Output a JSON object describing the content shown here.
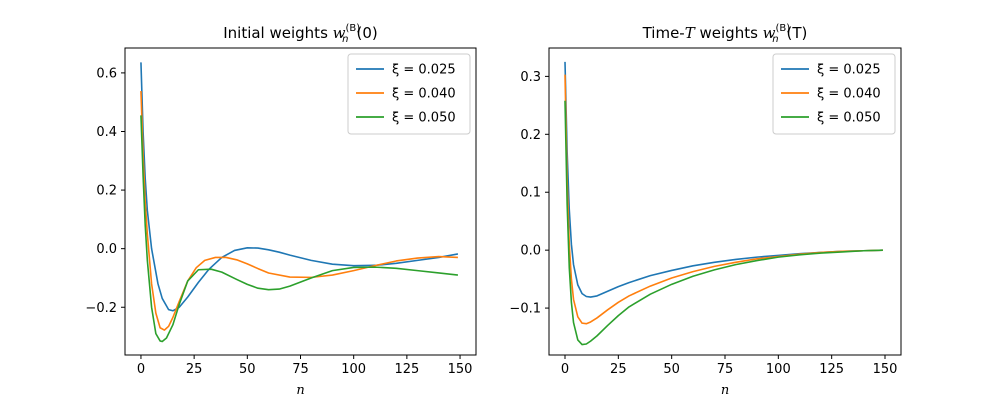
{
  "chart_data": [
    {
      "type": "line",
      "title": "Initial weights w_n^(B)(0)",
      "title_parts": {
        "prefix": "Initial weights ",
        "var": "w",
        "sub": "n",
        "sup": "(B)",
        "suffix": "(0)"
      },
      "xlabel": "n",
      "ylabel": "",
      "xlim": [
        -7.5,
        157.5
      ],
      "ylim": [
        -0.363,
        0.685
      ],
      "xticks": [
        0,
        25,
        50,
        75,
        100,
        125,
        150
      ],
      "xtick_labels": [
        "0",
        "25",
        "50",
        "75",
        "100",
        "125",
        "150"
      ],
      "yticks": [
        -0.2,
        0.0,
        0.2,
        0.4,
        0.6
      ],
      "ytick_labels": [
        "−0.2",
        "0.0",
        "0.2",
        "0.4",
        "0.6"
      ],
      "legend_position": "upper-right",
      "series": [
        {
          "name": "ξ = 0.025",
          "color": "#1f77b4",
          "x": [
            0,
            1,
            2,
            3,
            5,
            8,
            10,
            13,
            15,
            18,
            22,
            27,
            32,
            38,
            44,
            50,
            55,
            60,
            65,
            70,
            80,
            90,
            100,
            110,
            120,
            130,
            140,
            149
          ],
          "y": [
            0.636,
            0.4,
            0.24,
            0.13,
            0.0,
            -0.12,
            -0.17,
            -0.208,
            -0.212,
            -0.2,
            -0.165,
            -0.115,
            -0.07,
            -0.03,
            -0.006,
            0.003,
            0.002,
            -0.004,
            -0.012,
            -0.022,
            -0.04,
            -0.053,
            -0.058,
            -0.057,
            -0.05,
            -0.04,
            -0.03,
            -0.018
          ]
        },
        {
          "name": "ξ = 0.040",
          "color": "#ff7f0e",
          "x": [
            0,
            1,
            2,
            3,
            5,
            7,
            9,
            11,
            13,
            15,
            18,
            22,
            26,
            30,
            35,
            40,
            45,
            50,
            55,
            60,
            70,
            80,
            90,
            100,
            110,
            120,
            130,
            140,
            149
          ],
          "y": [
            0.538,
            0.32,
            0.16,
            0.05,
            -0.12,
            -0.22,
            -0.27,
            -0.278,
            -0.265,
            -0.235,
            -0.18,
            -0.11,
            -0.065,
            -0.04,
            -0.03,
            -0.03,
            -0.038,
            -0.052,
            -0.068,
            -0.083,
            -0.097,
            -0.098,
            -0.09,
            -0.075,
            -0.058,
            -0.042,
            -0.032,
            -0.027,
            -0.03
          ]
        },
        {
          "name": "ξ = 0.050",
          "color": "#2ca02c",
          "x": [
            0,
            1,
            2,
            3,
            5,
            7,
            9,
            10,
            12,
            15,
            18,
            22,
            27,
            33,
            38,
            45,
            50,
            55,
            60,
            65,
            70,
            80,
            90,
            100,
            110,
            120,
            130,
            140,
            149
          ],
          "y": [
            0.455,
            0.25,
            0.08,
            -0.04,
            -0.2,
            -0.29,
            -0.315,
            -0.317,
            -0.305,
            -0.26,
            -0.19,
            -0.11,
            -0.072,
            -0.07,
            -0.08,
            -0.105,
            -0.122,
            -0.135,
            -0.14,
            -0.138,
            -0.128,
            -0.1,
            -0.075,
            -0.064,
            -0.063,
            -0.067,
            -0.075,
            -0.083,
            -0.09
          ]
        }
      ]
    },
    {
      "type": "line",
      "title": "Time-T weights w_n^(B)(T)",
      "title_parts": {
        "prefix": "Time-",
        "prefix_var": "T",
        "mid": " weights ",
        "var": "w",
        "sub": "n",
        "sup": "(B)",
        "suffix": "(T)"
      },
      "xlabel": "n",
      "ylabel": "",
      "xlim": [
        -7.5,
        157.5
      ],
      "ylim": [
        -0.181,
        0.349
      ],
      "xticks": [
        0,
        25,
        50,
        75,
        100,
        125,
        150
      ],
      "xtick_labels": [
        "0",
        "25",
        "50",
        "75",
        "100",
        "125",
        "150"
      ],
      "yticks": [
        -0.1,
        0.0,
        0.1,
        0.2,
        0.3
      ],
      "ytick_labels": [
        "−0.1",
        "0.0",
        "0.1",
        "0.2",
        "0.3"
      ],
      "legend_position": "upper-right",
      "series": [
        {
          "name": "ξ = 0.025",
          "color": "#1f77b4",
          "x": [
            0,
            1,
            2,
            3,
            4,
            6,
            8,
            10,
            12,
            15,
            20,
            25,
            30,
            40,
            50,
            60,
            70,
            80,
            90,
            100,
            110,
            120,
            130,
            140,
            149
          ],
          "y": [
            0.325,
            0.17,
            0.07,
            0.01,
            -0.025,
            -0.06,
            -0.075,
            -0.08,
            -0.081,
            -0.079,
            -0.071,
            -0.063,
            -0.056,
            -0.044,
            -0.035,
            -0.027,
            -0.021,
            -0.016,
            -0.012,
            -0.009,
            -0.006,
            -0.004,
            -0.002,
            -0.001,
            0.0
          ]
        },
        {
          "name": "ξ = 0.040",
          "color": "#ff7f0e",
          "x": [
            0,
            1,
            2,
            3,
            4,
            6,
            8,
            10,
            12,
            15,
            20,
            25,
            30,
            40,
            50,
            60,
            70,
            80,
            90,
            100,
            110,
            120,
            130,
            140,
            149
          ],
          "y": [
            0.303,
            0.12,
            0.01,
            -0.05,
            -0.085,
            -0.115,
            -0.126,
            -0.127,
            -0.124,
            -0.117,
            -0.103,
            -0.09,
            -0.079,
            -0.062,
            -0.048,
            -0.037,
            -0.028,
            -0.021,
            -0.015,
            -0.011,
            -0.007,
            -0.004,
            -0.002,
            -0.001,
            0.0
          ]
        },
        {
          "name": "ξ = 0.050",
          "color": "#2ca02c",
          "x": [
            0,
            1,
            2,
            3,
            4,
            6,
            8,
            10,
            12,
            15,
            20,
            25,
            30,
            40,
            50,
            60,
            70,
            80,
            90,
            100,
            110,
            120,
            130,
            140,
            149
          ],
          "y": [
            0.258,
            0.08,
            -0.03,
            -0.09,
            -0.125,
            -0.155,
            -0.163,
            -0.162,
            -0.157,
            -0.148,
            -0.13,
            -0.113,
            -0.098,
            -0.076,
            -0.059,
            -0.045,
            -0.034,
            -0.025,
            -0.018,
            -0.012,
            -0.008,
            -0.005,
            -0.003,
            -0.001,
            0.0
          ]
        }
      ]
    }
  ]
}
